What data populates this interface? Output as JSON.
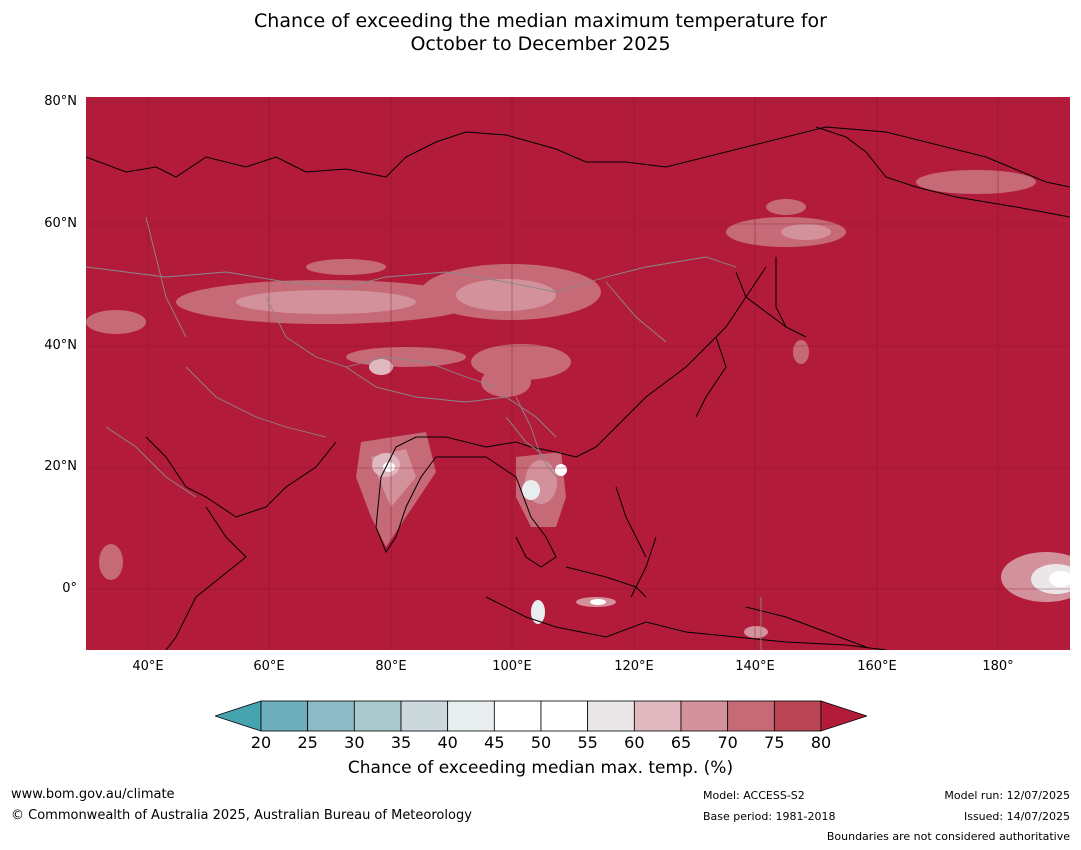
{
  "title": {
    "line1": "Chance of exceeding the median maximum temperature for",
    "line2": "October to December 2025"
  },
  "map": {
    "background_color": "#b31b3a",
    "lat_labels": [
      "80°N",
      "60°N",
      "40°N",
      "20°N",
      "0°"
    ],
    "lon_labels": [
      "40°E",
      "60°E",
      "80°E",
      "100°E",
      "120°E",
      "140°E",
      "160°E",
      "180°"
    ]
  },
  "colorbar": {
    "ticks": [
      "20",
      "25",
      "30",
      "35",
      "40",
      "45",
      "50",
      "55",
      "60",
      "65",
      "70",
      "75",
      "80"
    ],
    "colors": [
      "#46a3b0",
      "#6eafbe",
      "#8cbac6",
      "#a9c9cf",
      "#cbd9dc",
      "#e8eeef",
      "#ffffff",
      "#ffffff",
      "#ebe6e8",
      "#e0b9c0",
      "#d3919b",
      "#c66a77",
      "#b94453",
      "#b31b3a"
    ],
    "label": "Chance of exceeding median max. temp. (%)"
  },
  "footer": {
    "website": "www.bom.gov.au/climate",
    "copyright": "© Commonwealth of Australia 2025, Australian Bureau of Meteorology",
    "model": "Model: ACCESS-S2",
    "base_period": "Base period: 1981-2018",
    "model_run": "Model run: 12/07/2025",
    "issued": "Issued: 14/07/2025",
    "boundaries": "Boundaries are not considered authoritative"
  }
}
